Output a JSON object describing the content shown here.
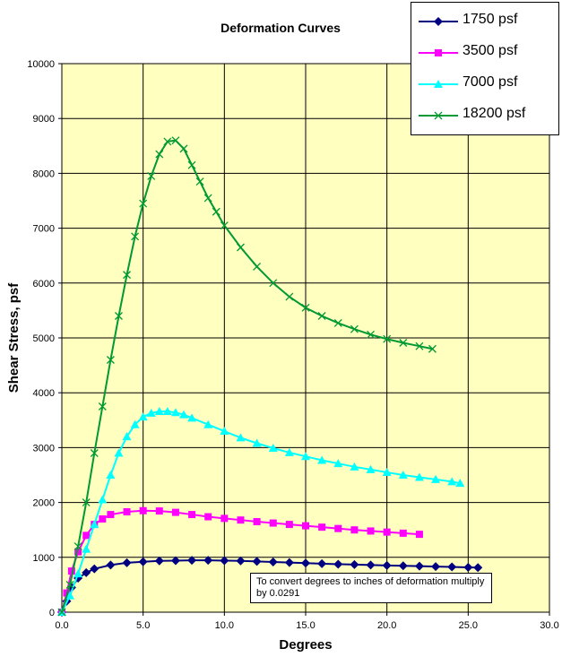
{
  "chart_data": {
    "type": "scatter",
    "title": "Deformation Curves",
    "xlabel": "Degrees",
    "ylabel": "Shear Stress, psf",
    "xlim": [
      0,
      30
    ],
    "ylim": [
      0,
      10000
    ],
    "x_ticks": [
      "0.0",
      "5.0",
      "10.0",
      "15.0",
      "20.0",
      "25.0",
      "30.0"
    ],
    "y_ticks": [
      "0",
      "1000",
      "2000",
      "3000",
      "4000",
      "5000",
      "6000",
      "7000",
      "8000",
      "9000",
      "10000"
    ],
    "grid": true,
    "legend_position": "top-right",
    "plot_background": "#ffffc0",
    "annotation": "To convert degrees to inches of deformation multiply by  0.0291",
    "series": [
      {
        "name": "1750 psf",
        "color": "#000080",
        "marker": "diamond",
        "x": [
          0,
          0.3,
          0.6,
          1,
          1.5,
          2,
          3,
          4,
          5,
          6,
          7,
          8,
          9,
          10,
          11,
          12,
          13,
          14,
          15,
          16,
          17,
          18,
          19,
          20,
          21,
          22,
          23,
          24,
          25,
          25.6
        ],
        "y": [
          0,
          200,
          450,
          620,
          720,
          790,
          860,
          900,
          920,
          935,
          940,
          945,
          945,
          940,
          935,
          925,
          915,
          905,
          895,
          885,
          875,
          868,
          860,
          852,
          846,
          840,
          832,
          825,
          818,
          812
        ]
      },
      {
        "name": "3500 psf",
        "color": "#ff00ff",
        "marker": "square",
        "x": [
          0,
          0.3,
          0.6,
          1,
          1.5,
          2,
          2.5,
          3,
          4,
          5,
          6,
          7,
          8,
          9,
          10,
          11,
          12,
          13,
          14,
          15,
          16,
          17,
          18,
          19,
          20,
          21,
          22
        ],
        "y": [
          0,
          350,
          750,
          1100,
          1400,
          1600,
          1700,
          1780,
          1830,
          1850,
          1845,
          1820,
          1780,
          1740,
          1710,
          1680,
          1650,
          1625,
          1600,
          1575,
          1550,
          1525,
          1500,
          1480,
          1460,
          1440,
          1420
        ]
      },
      {
        "name": "7000 psf",
        "color": "#00ffff",
        "marker": "triangle",
        "x": [
          0,
          0.5,
          1,
          1.5,
          2,
          2.5,
          3,
          3.5,
          4,
          4.5,
          5,
          5.5,
          6,
          6.5,
          7,
          7.5,
          8,
          9,
          10,
          11,
          12,
          13,
          14,
          15,
          16,
          17,
          18,
          19,
          20,
          21,
          22,
          23,
          24,
          24.5
        ],
        "y": [
          0,
          300,
          700,
          1150,
          1600,
          2050,
          2500,
          2900,
          3200,
          3420,
          3560,
          3630,
          3660,
          3660,
          3640,
          3600,
          3540,
          3420,
          3300,
          3180,
          3080,
          2990,
          2910,
          2840,
          2770,
          2710,
          2650,
          2600,
          2550,
          2500,
          2460,
          2420,
          2380,
          2350
        ]
      },
      {
        "name": "18200 psf",
        "color": "#009933",
        "marker": "x",
        "x": [
          0,
          0.5,
          1,
          1.5,
          2,
          2.5,
          3,
          3.5,
          4,
          4.5,
          5,
          5.5,
          6,
          6.5,
          7,
          7.5,
          8,
          8.5,
          9,
          9.5,
          10,
          11,
          12,
          13,
          14,
          15,
          16,
          17,
          18,
          19,
          20,
          21,
          22,
          22.8
        ],
        "y": [
          0,
          500,
          1200,
          2000,
          2900,
          3750,
          4600,
          5400,
          6150,
          6850,
          7450,
          7950,
          8350,
          8580,
          8600,
          8450,
          8150,
          7850,
          7550,
          7300,
          7050,
          6650,
          6300,
          6000,
          5750,
          5550,
          5400,
          5270,
          5160,
          5060,
          4980,
          4910,
          4850,
          4800
        ]
      }
    ]
  }
}
